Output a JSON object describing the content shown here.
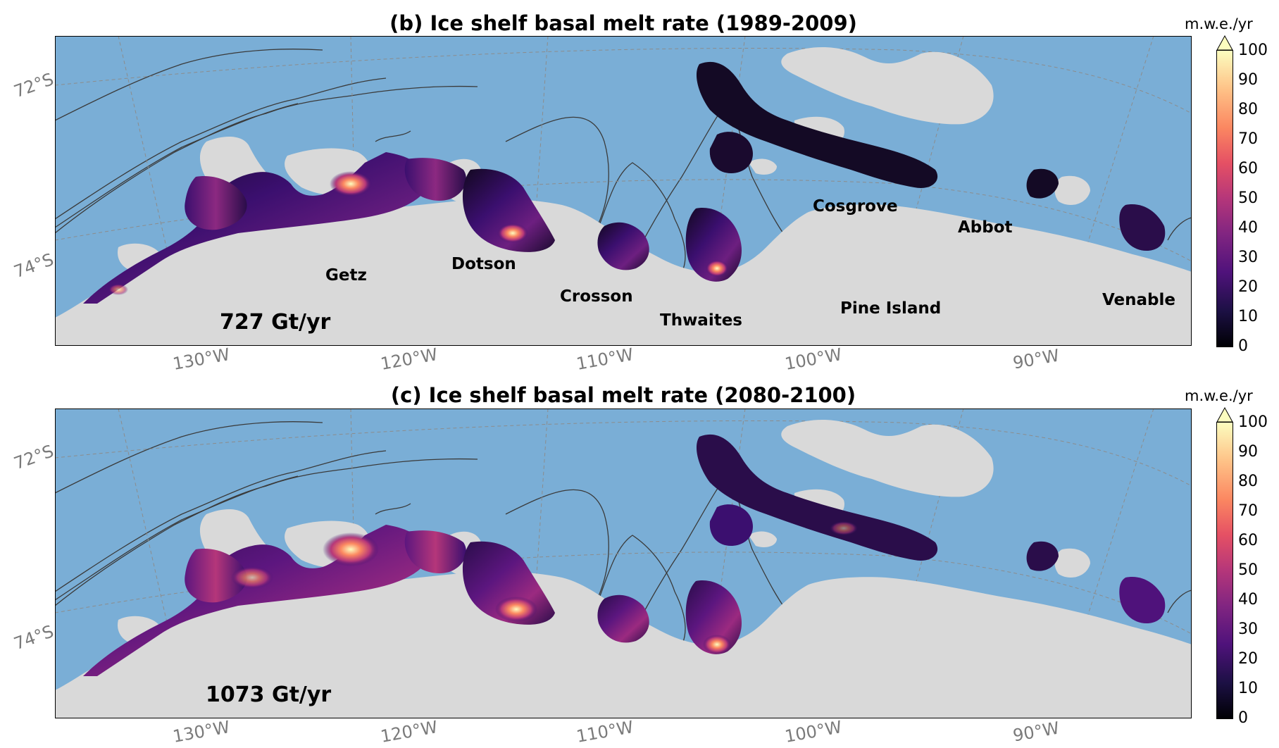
{
  "panels": [
    {
      "title": "(b) Ice shelf basal melt rate (1989-2009)",
      "total": "727 Gt/yr",
      "shelves": [
        "Getz",
        "Dotson",
        "Crosson",
        "Thwaites",
        "Cosgrove",
        "Pine Island",
        "Abbot",
        "Venable"
      ]
    },
    {
      "title": "(c) Ice shelf basal melt rate (2080-2100)",
      "total": "1073 Gt/yr",
      "shelves": []
    }
  ],
  "map": {
    "lat_labels": [
      "72°S",
      "74°S"
    ],
    "lon_labels": [
      "130°W",
      "120°W",
      "110°W",
      "100°W",
      "90°W"
    ],
    "colors": {
      "ocean": "#7aaed6",
      "land": "#d9d9d9",
      "grid": "#8c8c8c"
    }
  },
  "colorbar": {
    "unit": "m.w.e./yr",
    "ticks": [
      "0",
      "10",
      "20",
      "30",
      "40",
      "50",
      "60",
      "70",
      "80",
      "90",
      "100"
    ],
    "range": [
      0,
      100
    ],
    "extend": "max",
    "colormap": "magma"
  }
}
